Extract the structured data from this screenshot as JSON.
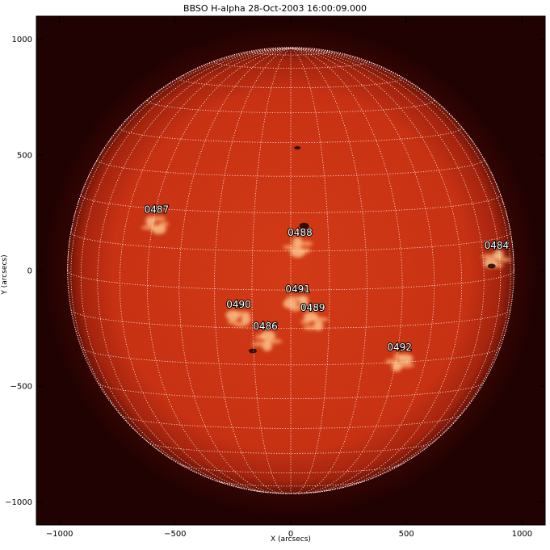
{
  "title": "BBSO H-alpha 28-Oct-2003 16:00:09.000",
  "axes": {
    "xlabel": "X (arcsecs)",
    "ylabel": "Y (arcsecs)",
    "xlim": [
      -1100,
      1100
    ],
    "ylim": [
      -1100,
      1100
    ],
    "xticks": [
      -1000,
      -500,
      0,
      500,
      1000
    ],
    "yticks": [
      1000,
      500,
      0,
      -500,
      -1000
    ],
    "xtick_labels": [
      "−1000",
      "−500",
      "0",
      "500",
      "1000"
    ],
    "ytick_labels": [
      "1000",
      "500",
      "0",
      "−500",
      "−1000"
    ]
  },
  "sun": {
    "radius_arcsec": 965,
    "center_arcsec": [
      0,
      0
    ],
    "disk_color": "#d93612",
    "limb_color": "#6a0c02",
    "background_color": "#200202",
    "grid_color": "#ffffff",
    "grid_spacing_deg": 10
  },
  "active_regions": [
    {
      "id": "0487",
      "x": -580,
      "y": 250
    },
    {
      "id": "0488",
      "x": 40,
      "y": 150
    },
    {
      "id": "0484",
      "x": 890,
      "y": 95
    },
    {
      "id": "0491",
      "x": 30,
      "y": -95
    },
    {
      "id": "0490",
      "x": -225,
      "y": -160
    },
    {
      "id": "0489",
      "x": 95,
      "y": -175
    },
    {
      "id": "0486",
      "x": -110,
      "y": -255
    },
    {
      "id": "0492",
      "x": 470,
      "y": -345
    }
  ]
}
